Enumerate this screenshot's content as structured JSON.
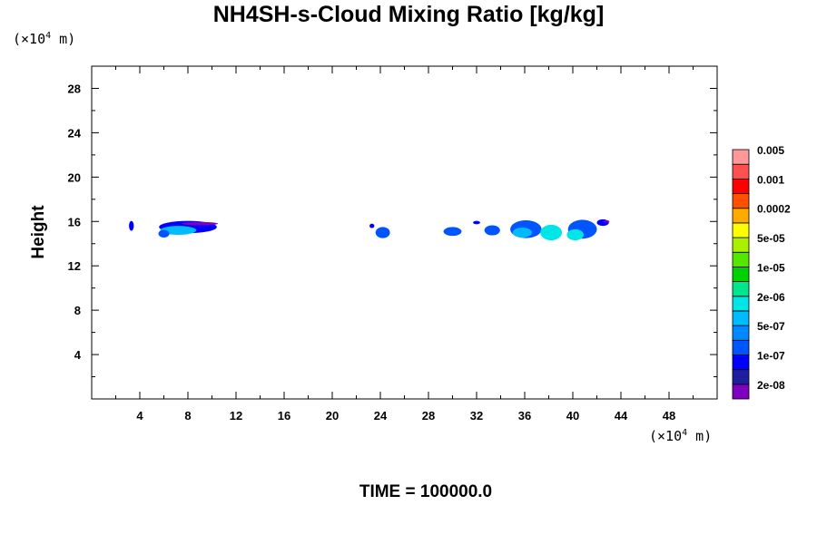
{
  "chart_data": {
    "type": "heatmap",
    "title": "NH4SH-s-Cloud Mixing Ratio [kg/kg]",
    "ylabel": "Height",
    "xlabel": "",
    "x_unit": {
      "prefix": "(×10",
      "exp": "4",
      "suffix": " m)"
    },
    "y_unit": {
      "prefix": "(×10",
      "exp": "4",
      "suffix": " m)"
    },
    "xlim": [
      0,
      52
    ],
    "ylim": [
      0,
      30
    ],
    "x_ticks": [
      4,
      8,
      12,
      16,
      20,
      24,
      28,
      32,
      36,
      40,
      44,
      48
    ],
    "y_ticks": [
      4,
      8,
      12,
      16,
      20,
      24,
      28
    ],
    "colorbar": {
      "colors": [
        "#7f00bf",
        "#1e1e9e",
        "#0000ff",
        "#0055ff",
        "#0088ff",
        "#00bbff",
        "#00e6e6",
        "#00e68c",
        "#00d200",
        "#55e600",
        "#aaf000",
        "#ffff00",
        "#ffaa00",
        "#ff5000",
        "#ff0000",
        "#ff5050",
        "#ff9999"
      ],
      "labels": [
        "2e-08",
        "1e-07",
        "5e-07",
        "2e-06",
        "1e-05",
        "5e-05",
        "0.0002",
        "0.001",
        "0.005"
      ]
    },
    "cloud_patches": [
      {
        "x": 3.3,
        "y": 15.6,
        "w": 0.4,
        "h": 0.9,
        "level": 2
      },
      {
        "x": 8.0,
        "y": 15.5,
        "w": 4.8,
        "h": 1.1,
        "level": 2
      },
      {
        "x": 7.2,
        "y": 15.2,
        "w": 3.0,
        "h": 0.8,
        "level": 5
      },
      {
        "x": 6.0,
        "y": 14.9,
        "w": 0.9,
        "h": 0.7,
        "level": 3
      },
      {
        "x": 9.0,
        "y": 15.8,
        "w": 3.0,
        "h": 0.3,
        "level": 0
      },
      {
        "x": 24.2,
        "y": 15.0,
        "w": 1.2,
        "h": 1.0,
        "level": 3
      },
      {
        "x": 23.3,
        "y": 15.6,
        "w": 0.4,
        "h": 0.4,
        "level": 2
      },
      {
        "x": 30.0,
        "y": 15.1,
        "w": 1.5,
        "h": 0.8,
        "level": 3
      },
      {
        "x": 32.0,
        "y": 15.9,
        "w": 0.6,
        "h": 0.3,
        "level": 2
      },
      {
        "x": 33.3,
        "y": 15.2,
        "w": 1.3,
        "h": 0.9,
        "level": 3
      },
      {
        "x": 36.1,
        "y": 15.3,
        "w": 2.6,
        "h": 1.6,
        "level": 3
      },
      {
        "x": 35.8,
        "y": 15.0,
        "w": 1.6,
        "h": 0.9,
        "level": 5
      },
      {
        "x": 38.2,
        "y": 15.0,
        "w": 1.8,
        "h": 1.4,
        "level": 6
      },
      {
        "x": 40.8,
        "y": 15.3,
        "w": 2.4,
        "h": 1.7,
        "level": 3
      },
      {
        "x": 40.2,
        "y": 14.8,
        "w": 1.4,
        "h": 1.0,
        "level": 6
      },
      {
        "x": 42.5,
        "y": 15.9,
        "w": 1.0,
        "h": 0.6,
        "level": 2
      },
      {
        "x": 42.8,
        "y": 16.0,
        "w": 0.5,
        "h": 0.2,
        "level": 0
      }
    ]
  },
  "time_label": "TIME = 100000.0"
}
